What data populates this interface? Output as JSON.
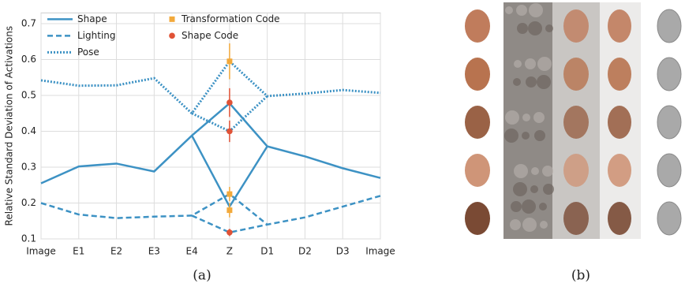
{
  "chart_data": {
    "type": "line",
    "ylabel": "Relative Standard Deviation of Activations",
    "caption": "(a)",
    "categories": [
      "Image",
      "E1",
      "E2",
      "E3",
      "E4",
      "Z",
      "D1",
      "D2",
      "D3",
      "Image"
    ],
    "ylim": [
      0.1,
      0.73
    ],
    "yticks": [
      0.1,
      0.2,
      0.3,
      0.4,
      0.5,
      0.6,
      0.7
    ],
    "grid": true,
    "legend": "upper left",
    "series": [
      {
        "name": "Shape",
        "color": "#3d92c4",
        "style": "solid",
        "values": [
          0.255,
          0.302,
          0.31,
          0.288,
          0.388,
          [
            0.478,
            0.19
          ],
          0.358,
          0.33,
          0.297,
          0.27
        ]
      },
      {
        "name": "Lighting",
        "color": "#3d92c4",
        "style": "dashed",
        "values": [
          0.2,
          0.168,
          0.158,
          0.162,
          0.165,
          [
            0.225,
            0.118
          ],
          0.14,
          0.16,
          0.19,
          0.22
        ]
      },
      {
        "name": "Pose",
        "color": "#3d92c4",
        "style": "dotted",
        "values": [
          0.542,
          0.527,
          0.528,
          0.548,
          0.45,
          [
            0.595,
            0.4
          ],
          0.498,
          0.505,
          0.515,
          0.507
        ]
      }
    ],
    "markers": [
      {
        "name": "Transformation Code",
        "color": "#f2a93b",
        "shape": "square",
        "values": [
          0.595,
          0.225,
          0.18
        ],
        "errors": [
          0.05,
          0.02,
          0.02
        ]
      },
      {
        "name": "Shape Code",
        "color": "#e05236",
        "shape": "circle",
        "values": [
          0.48,
          0.4,
          0.118
        ],
        "errors": [
          0.04,
          0.03,
          0.01
        ]
      }
    ]
  },
  "panel_b": {
    "caption": "(b)"
  }
}
